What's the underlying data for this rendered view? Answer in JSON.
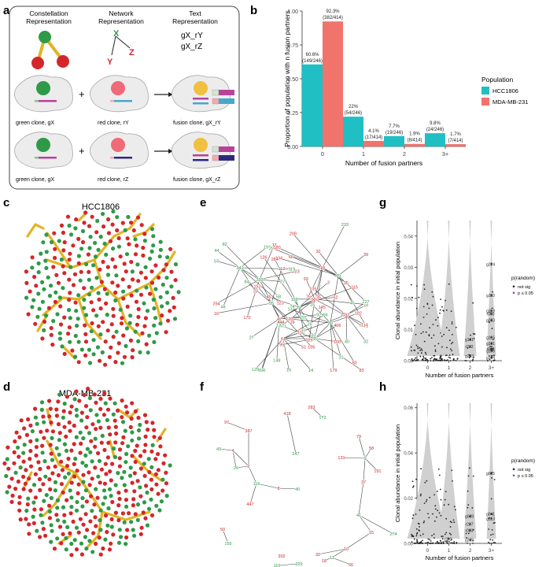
{
  "panels": {
    "a": {
      "letter": "a",
      "col_titles": [
        [
          "Constellation",
          "Representation"
        ],
        [
          "Network",
          "Representation"
        ],
        [
          "Text",
          "Representation"
        ]
      ],
      "network_nodes": [
        "X",
        "Y",
        "Z"
      ],
      "text_lines": [
        "gX_rY",
        "gX_rZ"
      ],
      "rows": [
        {
          "labels": [
            "green clone, gX",
            "red clone, rY",
            "fusion clone, gX_rY"
          ]
        },
        {
          "labels": [
            "green clone, gX",
            "red clone, rZ",
            "fusion clone, gX_rZ"
          ]
        }
      ],
      "colors": {
        "green": "#2e9a48",
        "red": "#d4262a",
        "gold": "#e3b324",
        "fusion": "#f0c040",
        "magenta": "#b8429a",
        "cyan": "#48a8cc",
        "navy": "#2c2a7c",
        "pink": "#f4a8ae"
      }
    },
    "b": {
      "letter": "b",
      "chart_data": {
        "type": "bar",
        "title": "",
        "xlabel": "Number of fusion partners",
        "ylabel": "Proportion of population with n fusion partners",
        "categories": [
          "0",
          "1",
          "2",
          "3+"
        ],
        "ylim": [
          0,
          1.0
        ],
        "yticks": [
          "0.00",
          "0.25",
          "0.50",
          "0.75",
          "1.00"
        ],
        "legend_title": "Population",
        "series": [
          {
            "name": "HCC1806",
            "color": "#20bfc4",
            "values": [
              0.606,
              0.22,
              0.077,
              0.098
            ],
            "labels": [
              [
                "60.6%",
                "(149/246)"
              ],
              [
                "22%",
                "(54/246)"
              ],
              [
                "7.7%",
                "(19/246)"
              ],
              [
                "9.8%",
                "(24/246)"
              ]
            ]
          },
          {
            "name": "MDA-MB-231",
            "color": "#f0736c",
            "values": [
              0.923,
              0.041,
              0.019,
              0.017
            ],
            "labels": [
              [
                "92.3%",
                "(382/414)"
              ],
              [
                "4.1%",
                "(17/414)"
              ],
              [
                "1.9%",
                "(8/414)"
              ],
              [
                "1.7%",
                "(7/414)"
              ]
            ]
          }
        ]
      }
    },
    "c": {
      "letter": "c",
      "title": "HCC1806"
    },
    "d": {
      "letter": "d",
      "title": "MDA-MB-231"
    },
    "e": {
      "letter": "e",
      "node_labels": [
        "341",
        "222",
        "55",
        "42",
        "74",
        "120",
        "18",
        "79",
        "88",
        "85",
        "61",
        "137",
        "194",
        "223",
        "152",
        "157",
        "126",
        "130",
        "29",
        "46",
        "80",
        "83",
        "150",
        "32",
        "57",
        "17",
        "84",
        "92",
        "37",
        "126",
        "233",
        "39",
        "179",
        "95",
        "14",
        "50",
        "123",
        "254",
        "39",
        "199",
        "45",
        "93",
        "76",
        "104",
        "102",
        "74",
        "129",
        "6",
        "119",
        "82",
        "44",
        "64",
        "26",
        "62",
        "46",
        "32",
        "15",
        "145",
        "16",
        "105",
        "23",
        "27",
        "105",
        "149",
        "115",
        "24",
        "35",
        "66",
        "31",
        "406",
        "33",
        "3",
        "48",
        "58",
        "112",
        "35",
        "284",
        "25",
        "209",
        "71",
        "13",
        "100",
        "66",
        "114",
        "44",
        "170",
        "16",
        "27",
        "3",
        "128",
        "180",
        "227",
        "120",
        "132",
        "51",
        "40"
      ]
    },
    "f": {
      "letter": "f",
      "node_labels": [
        "97",
        "387",
        "43",
        "4",
        "26",
        "2",
        "115",
        "447",
        "8",
        "40",
        "418",
        "247",
        "283",
        "172",
        "79",
        "58",
        "131",
        "9",
        "191",
        "37",
        "41",
        "274",
        "15",
        "10",
        "32",
        "11",
        "66",
        "18",
        "302",
        "50",
        "155",
        "115",
        "229"
      ]
    },
    "g": {
      "letter": "g",
      "chart_data": {
        "type": "scatter",
        "xlabel": "Number of fusion partners",
        "ylabel": "Clonal abundance in initial population",
        "categories": [
          "0",
          "1",
          "2",
          "3+"
        ],
        "ylim": [
          0,
          0.045
        ],
        "yticks": [
          "0.00",
          "0.01",
          "0.02",
          "0.03",
          "0.04"
        ],
        "legend_title": "p(random)",
        "legend_items": [
          "not sig",
          "p ≤ 0.05"
        ],
        "annotations": [
          {
            "label": "g224",
            "cat": 3,
            "y": 0.031
          },
          {
            "label": "g110",
            "cat": 3,
            "y": 0.021
          },
          {
            "label": "g119",
            "cat": 3,
            "y": 0.016
          },
          {
            "label": "r090",
            "cat": 3,
            "y": 0.015
          },
          {
            "label": "g233",
            "cat": 3,
            "y": 0.013
          },
          {
            "label": "g115",
            "cat": 3,
            "y": 0.0075
          },
          {
            "label": "g131",
            "cat": 2,
            "y": 0.0068
          },
          {
            "label": "g101",
            "cat": 3,
            "y": 0.0055
          },
          {
            "label": "r222",
            "cat": 2,
            "y": 0.0045
          },
          {
            "label": "r088",
            "cat": 3,
            "y": 0.0038
          },
          {
            "label": "g106",
            "cat": 3,
            "y": 0.0032
          },
          {
            "label": "g233",
            "cat": 2,
            "y": 0.0015
          },
          {
            "label": "g194",
            "cat": 3,
            "y": 0.001
          }
        ]
      }
    },
    "h": {
      "letter": "h",
      "chart_data": {
        "type": "scatter",
        "xlabel": "Number of fusion partners",
        "ylabel": "Clonal abundance in initial population",
        "categories": [
          "0",
          "1",
          "2",
          "3+"
        ],
        "ylim": [
          0,
          0.062
        ],
        "yticks": [
          "0.00",
          "0.02",
          "0.04",
          "0.06"
        ],
        "legend_title": "p(random)",
        "legend_items": [
          "not sig",
          "p ≤ 0.05"
        ],
        "annotations": [
          {
            "label": "g025",
            "cat": 3,
            "y": 0.031
          },
          {
            "label": "g039",
            "cat": 2,
            "y": 0.012
          },
          {
            "label": "g041",
            "cat": 3,
            "y": 0.013
          },
          {
            "label": "r227",
            "cat": 2,
            "y": 0.0085
          },
          {
            "label": "g113",
            "cat": 3,
            "y": 0.011
          },
          {
            "label": "r083",
            "cat": 2,
            "y": 0.0058
          },
          {
            "label": "r302",
            "cat": 1,
            "y": 0.002
          },
          {
            "label": "g285",
            "cat": 2,
            "y": 0.0015
          }
        ]
      }
    }
  }
}
